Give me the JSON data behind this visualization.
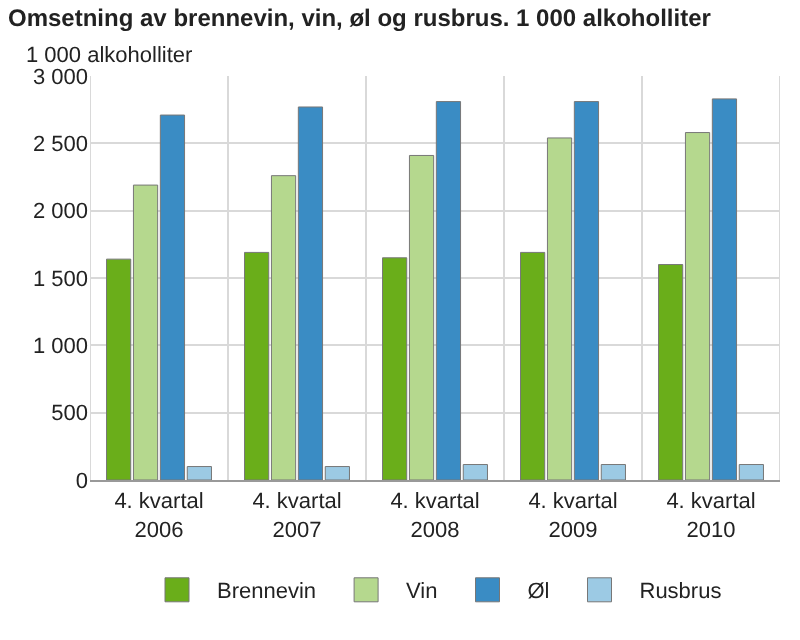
{
  "chart_data": {
    "type": "bar",
    "title": "Omsetning av brennevin, vin, øl og rusbrus. 1 000 alkoholliter",
    "subtitle": "1 000 alkoholliter",
    "categories": [
      "4. kvartal\n2006",
      "4. kvartal\n2007",
      "4. kvartal\n2008",
      "4. kvartal\n2009",
      "4. kvartal\n2010"
    ],
    "series": [
      {
        "name": "Brennevin",
        "color": "#6aae1a",
        "values": [
          1640,
          1690,
          1650,
          1690,
          1600
        ]
      },
      {
        "name": "Vin",
        "color": "#b5d88e",
        "values": [
          2190,
          2260,
          2410,
          2540,
          2580
        ]
      },
      {
        "name": "Øl",
        "color": "#3a8cc4",
        "values": [
          2710,
          2770,
          2810,
          2810,
          2830
        ]
      },
      {
        "name": "Rusbrus",
        "color": "#9ccae4",
        "values": [
          100,
          100,
          115,
          115,
          115
        ]
      }
    ],
    "ylim": [
      0,
      3000
    ],
    "yticks": [
      {
        "value": 0,
        "label": "0"
      },
      {
        "value": 500,
        "label": "500"
      },
      {
        "value": 1000,
        "label": "1 000"
      },
      {
        "value": 1500,
        "label": "1 500"
      },
      {
        "value": 2000,
        "label": "2 000"
      },
      {
        "value": 2500,
        "label": "2 500"
      },
      {
        "value": 3000,
        "label": "3 000"
      }
    ],
    "grid": true,
    "legend": "bottom"
  }
}
